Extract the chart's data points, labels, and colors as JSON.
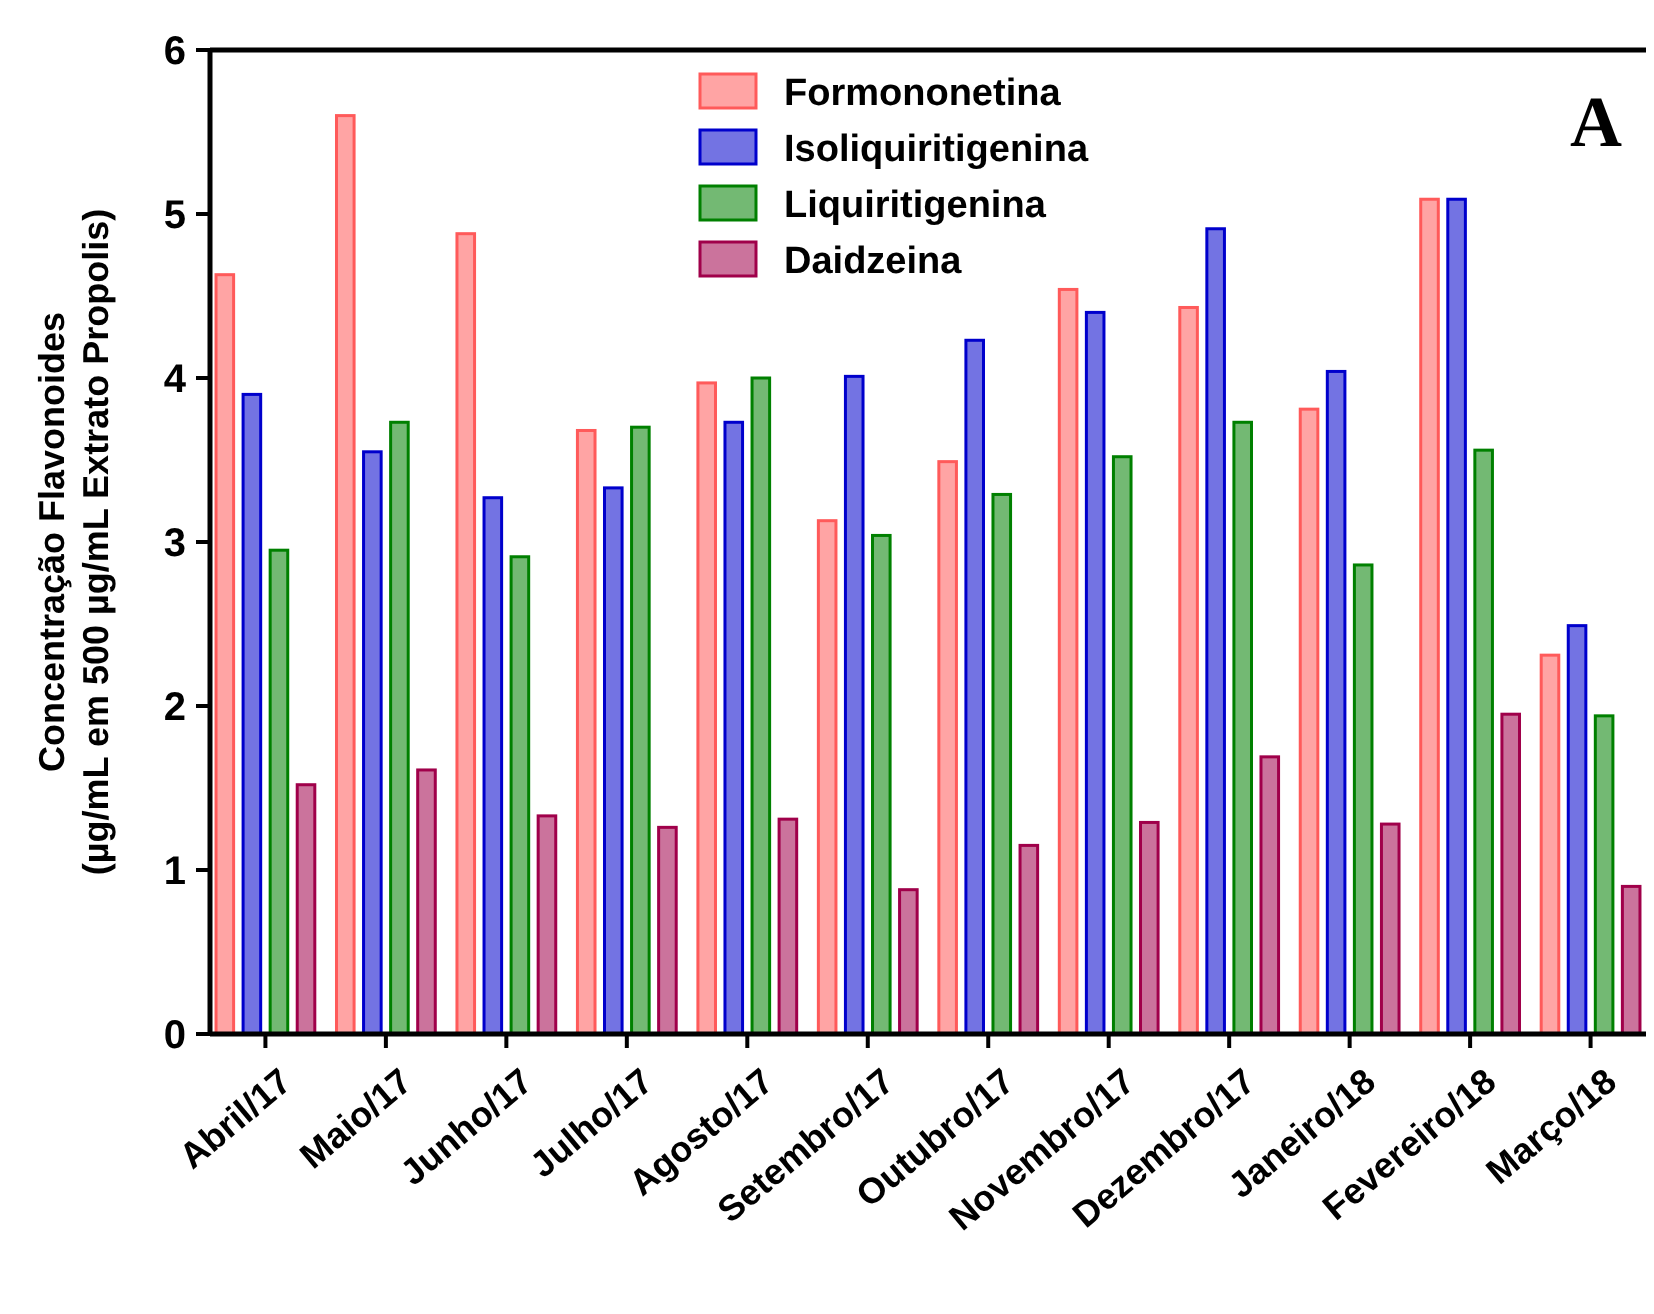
{
  "chart_data": {
    "type": "bar",
    "ylabel": "Concentração Flavonoides\n(µg/mL em 500 µg/mL Extrato Propolis)",
    "annotations": [
      "A"
    ],
    "categories": [
      "Abril/17",
      "Maio/17",
      "Junho/17",
      "Julho/17",
      "Agosto/17",
      "Setembro/17",
      "Outubro/17",
      "Novembro/17",
      "Dezembro/17",
      "Janeiro/18",
      "Fevereiro/18",
      "Março/18"
    ],
    "series": [
      {
        "name": "Formononetina",
        "color": "#ff5a5a",
        "values": [
          4.63,
          5.6,
          4.88,
          3.68,
          3.97,
          3.13,
          3.49,
          4.54,
          4.43,
          3.81,
          5.09,
          2.31
        ]
      },
      {
        "name": "Isoliquiritigenina",
        "color": "#0000cc",
        "values": [
          3.9,
          3.55,
          3.27,
          3.33,
          3.73,
          4.01,
          4.23,
          4.4,
          4.91,
          4.04,
          5.09,
          2.49
        ]
      },
      {
        "name": "Liquiritigenina",
        "color": "#008000",
        "values": [
          2.95,
          3.73,
          2.91,
          3.7,
          4.0,
          3.04,
          3.29,
          3.52,
          3.73,
          2.86,
          3.56,
          1.94
        ]
      },
      {
        "name": "Daidzeina",
        "color": "#a0004a",
        "values": [
          1.52,
          1.61,
          1.33,
          1.26,
          1.31,
          0.88,
          1.15,
          1.29,
          1.69,
          1.28,
          1.95,
          0.9
        ]
      }
    ],
    "ylim": [
      0,
      6
    ],
    "yticks": [
      0,
      1,
      2,
      3,
      4,
      5,
      6
    ],
    "grid": false,
    "legend": "top"
  }
}
